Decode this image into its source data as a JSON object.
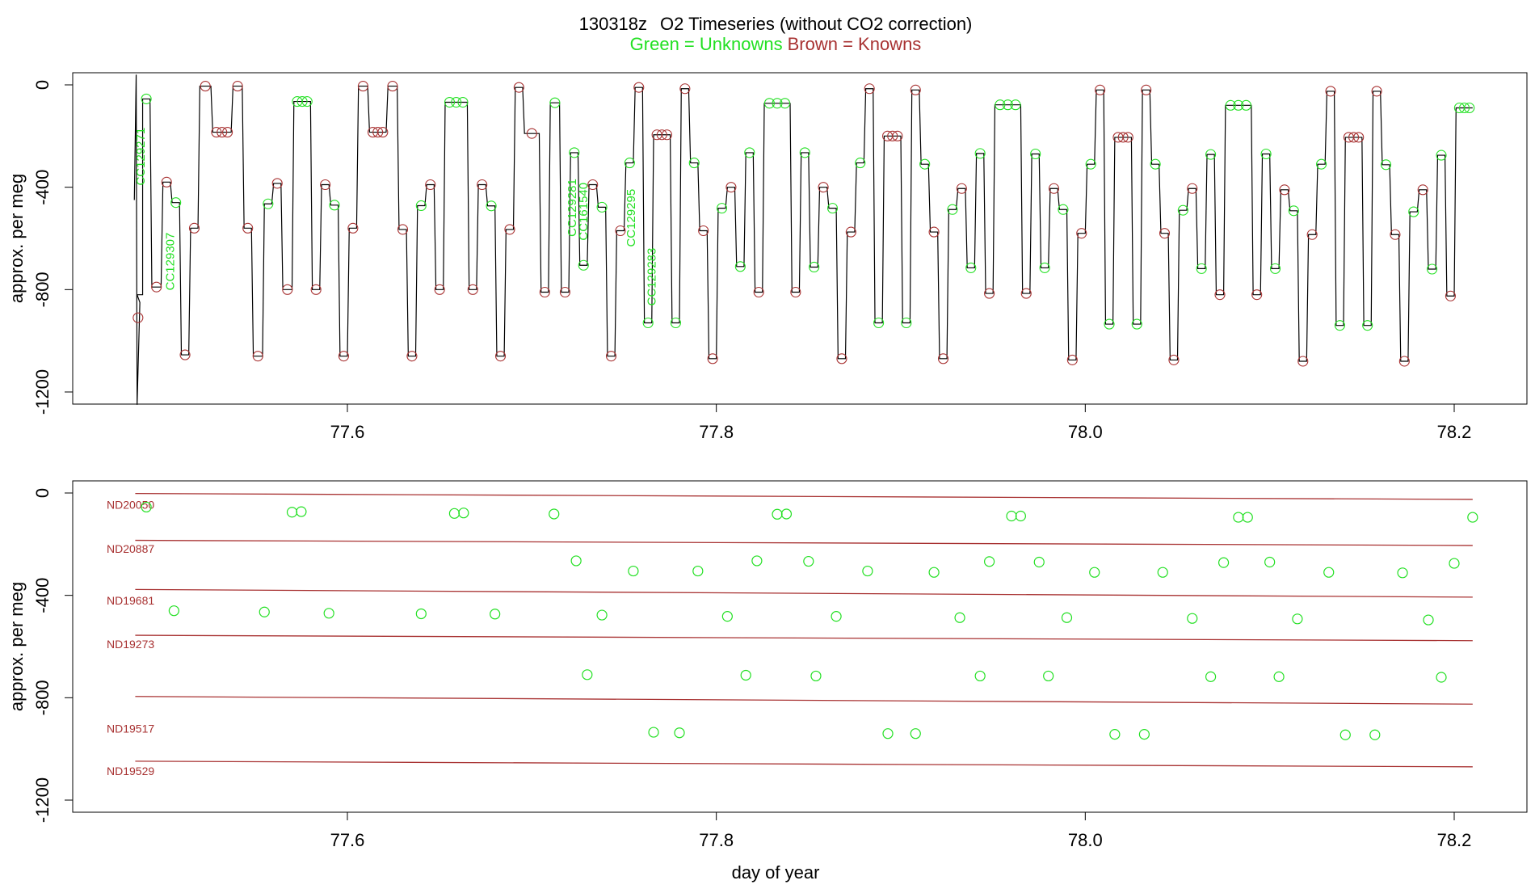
{
  "figure": {
    "title_id": "130318z",
    "title_main": "O2 Timeseries (without CO2 correction)",
    "legend_green": "Green = Unknowns",
    "legend_brown": "Brown = Knowns",
    "colors": {
      "unknown": "#22e022",
      "known": "#a83232",
      "trace": "#000000",
      "axis": "#000000"
    }
  },
  "chart_data": [
    {
      "type": "line",
      "panel": "top",
      "ylabel": "approx. per meg",
      "xlabel": "",
      "xlim": [
        77.45,
        78.25
      ],
      "ylim": [
        -1250,
        50
      ],
      "x_ticks": [
        77.6,
        77.8,
        78.0,
        78.2
      ],
      "x_tick_labels": [
        "77.6",
        "77.8",
        "78.0",
        "78.2"
      ],
      "y_ticks": [
        0,
        -400,
        -800,
        -1200
      ],
      "y_tick_labels": [
        "0",
        "-400",
        "-800",
        "-1200"
      ],
      "annotations": [
        {
          "text": "CC129271",
          "x": 77.49,
          "y": -280
        },
        {
          "text": "CC129307",
          "x": 77.506,
          "y": -690
        },
        {
          "text": "CC129281",
          "x": 77.724,
          "y": -480
        },
        {
          "text": "CC161540",
          "x": 77.73,
          "y": -495
        },
        {
          "text": "CC129295",
          "x": 77.756,
          "y": -520
        },
        {
          "text": "CC129283",
          "x": 77.767,
          "y": -750
        }
      ]
    },
    {
      "type": "scatter",
      "panel": "bottom",
      "ylabel": "approx. per meg",
      "xlabel": "day of year",
      "xlim": [
        77.45,
        78.25
      ],
      "ylim": [
        -1250,
        50
      ],
      "x_ticks": [
        77.6,
        77.8,
        78.0,
        78.2
      ],
      "x_tick_labels": [
        "77.6",
        "77.8",
        "78.0",
        "78.2"
      ],
      "y_ticks": [
        0,
        -400,
        -800,
        -1200
      ],
      "y_tick_labels": [
        "0",
        "-400",
        "-800",
        "-1200"
      ],
      "reference_lines": [
        {
          "name": "ND20050",
          "x": [
            77.485,
            78.21
          ],
          "y": [
            -2,
            -25
          ],
          "label_y": -45
        },
        {
          "name": "ND20887",
          "x": [
            77.485,
            78.21
          ],
          "y": [
            -185,
            -205
          ],
          "label_y": -218
        },
        {
          "name": "ND19681",
          "x": [
            77.485,
            78.21
          ],
          "y": [
            -377,
            -407
          ],
          "label_y": -420
        },
        {
          "name": "ND19273",
          "x": [
            77.485,
            78.21
          ],
          "y": [
            -556,
            -577
          ],
          "label_y": -590
        },
        {
          "name": "",
          "x": [
            77.485,
            78.21
          ],
          "y": [
            -795,
            -825
          ],
          "label_y": null
        },
        {
          "name": "ND19517",
          "x": [
            77.485,
            78.21
          ],
          "y": [
            -1048,
            -1070
          ],
          "label_y": -920
        },
        {
          "name": "ND19529",
          "x": [
            77.485,
            78.21
          ],
          "y": [
            -1048,
            -1070
          ],
          "label_y": -1087
        }
      ],
      "unknowns": {
        "x": [
          77.491,
          77.57,
          77.575,
          77.658,
          77.663,
          77.712,
          77.833,
          77.838,
          77.96,
          77.965,
          78.083,
          78.088,
          78.21,
          77.724,
          77.755,
          77.79,
          77.822,
          77.85,
          77.882,
          77.918,
          77.948,
          77.975,
          78.005,
          78.042,
          78.075,
          78.1,
          78.132,
          78.172,
          78.2,
          77.506,
          77.555,
          77.59,
          77.64,
          77.68,
          77.738,
          77.806,
          77.865,
          77.932,
          77.99,
          78.058,
          78.115,
          78.186,
          77.73,
          77.816,
          77.854,
          77.943,
          77.98,
          78.068,
          78.105,
          78.193,
          77.766,
          77.78,
          77.893,
          77.908,
          78.016,
          78.032,
          78.141,
          78.157
        ],
        "y": [
          -55,
          -75,
          -73,
          -80,
          -78,
          -82,
          -83,
          -82,
          -90,
          -90,
          -95,
          -95,
          -95,
          -265,
          -305,
          -305,
          -265,
          -267,
          -305,
          -310,
          -268,
          -270,
          -310,
          -310,
          -272,
          -270,
          -310,
          -312,
          -275,
          -460,
          -465,
          -470,
          -472,
          -473,
          -477,
          -482,
          -482,
          -487,
          -487,
          -490,
          -492,
          -496,
          -710,
          -712,
          -715,
          -715,
          -715,
          -718,
          -718,
          -720,
          -935,
          -937,
          -940,
          -940,
          -943,
          -943,
          -945,
          -945
        ]
      }
    }
  ]
}
